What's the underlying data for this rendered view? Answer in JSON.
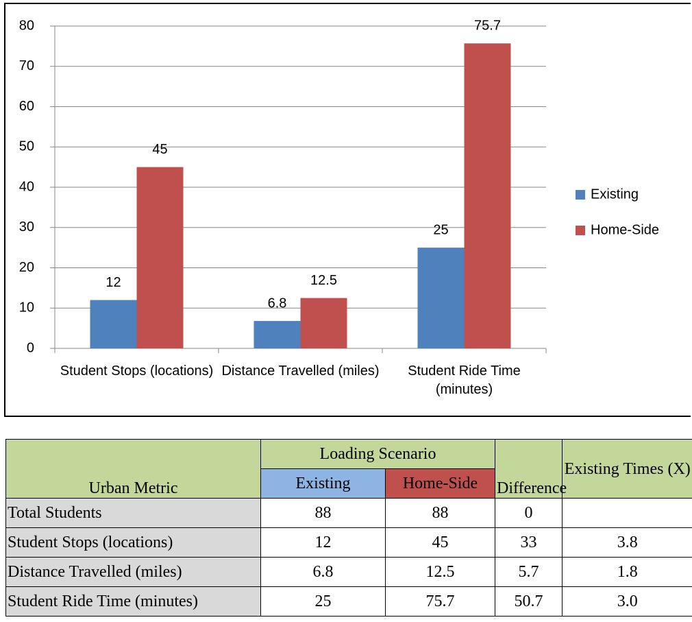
{
  "chart_data": {
    "type": "bar",
    "categories": [
      "Student Stops (locations)",
      "Distance Travelled (miles)",
      "Student Ride Time (minutes)"
    ],
    "series": [
      {
        "name": "Existing",
        "color": "#4f81bd",
        "values": [
          12,
          6.8,
          25
        ]
      },
      {
        "name": "Home-Side",
        "color": "#c0504d",
        "values": [
          45,
          12.5,
          75.7
        ]
      }
    ],
    "ylim": [
      0,
      80
    ],
    "yticks": [
      0,
      10,
      20,
      30,
      40,
      50,
      60,
      70,
      80
    ],
    "grid": true,
    "legend": "right"
  },
  "table": {
    "header": {
      "metric": "Urban Metric",
      "group": "Loading Scenario",
      "existing": "Existing",
      "home_side": "Home-Side",
      "difference": "Difference",
      "times": "Existing Times (X)"
    },
    "rows": [
      [
        "Total Students",
        "88",
        "88",
        "0"
      ],
      [
        "Student Stops (locations)",
        "12",
        "45",
        "33",
        "3.8"
      ],
      [
        "Distance Travelled (miles)",
        "6.8",
        "12.5",
        "5.7",
        "1.8"
      ],
      [
        "Student Ride Time (minutes)",
        "25",
        "75.7",
        "50.7",
        "3.0"
      ]
    ]
  }
}
